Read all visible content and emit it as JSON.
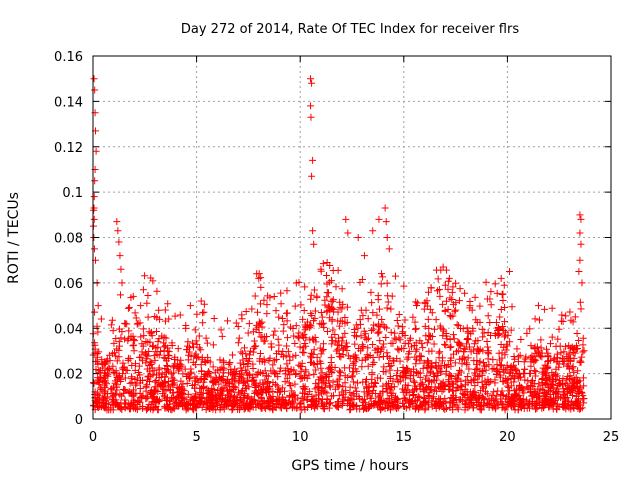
{
  "chart_data": {
    "type": "scatter",
    "title": "Day 272 of 2014, Rate Of TEC Index for receiver flrs",
    "xlabel": "GPS time / hours",
    "ylabel": "ROTI / TECUs",
    "xlim": [
      0,
      25
    ],
    "ylim": [
      0,
      0.16
    ],
    "x_ticks": [
      "0",
      "5",
      "10",
      "15",
      "20",
      "25"
    ],
    "y_ticks": [
      "0",
      "0.02",
      "0.04",
      "0.06",
      "0.08",
      "0.1",
      "0.12",
      "0.14",
      "0.16"
    ],
    "x_tick_values": [
      0,
      5,
      10,
      15,
      20,
      25
    ],
    "y_tick_values": [
      0,
      0.02,
      0.04,
      0.06,
      0.08,
      0.1,
      0.12,
      0.14,
      0.16
    ],
    "grid": true,
    "marker": "+",
    "series_color": "#ff0000",
    "density_profile": {
      "hours": [
        0,
        0.5,
        1,
        1.5,
        2,
        2.5,
        3,
        3.5,
        4,
        4.5,
        5,
        5.5,
        6,
        6.5,
        7,
        7.5,
        8,
        8.5,
        9,
        9.5,
        10,
        10.5,
        11,
        11.5,
        12,
        12.5,
        13,
        13.5,
        14,
        14.5,
        15,
        15.5,
        16,
        16.5,
        17,
        17.5,
        18,
        18.5,
        19,
        19.5,
        20,
        20.5,
        21,
        21.5,
        22,
        22.5,
        23,
        23.5
      ],
      "typical_max": [
        0.035,
        0.025,
        0.032,
        0.045,
        0.035,
        0.045,
        0.04,
        0.035,
        0.025,
        0.03,
        0.035,
        0.03,
        0.025,
        0.025,
        0.025,
        0.03,
        0.045,
        0.035,
        0.035,
        0.04,
        0.045,
        0.05,
        0.05,
        0.05,
        0.048,
        0.045,
        0.045,
        0.04,
        0.045,
        0.045,
        0.04,
        0.035,
        0.035,
        0.045,
        0.05,
        0.045,
        0.04,
        0.04,
        0.045,
        0.04,
        0.04,
        0.02,
        0.03,
        0.035,
        0.03,
        0.035,
        0.035,
        0.035
      ],
      "floor": 0.005
    },
    "notable_points": [
      {
        "x": 0.05,
        "y": 0.15
      },
      {
        "x": 0.08,
        "y": 0.145
      },
      {
        "x": 0.1,
        "y": 0.135
      },
      {
        "x": 0.12,
        "y": 0.127
      },
      {
        "x": 0.15,
        "y": 0.118
      },
      {
        "x": 0.1,
        "y": 0.11
      },
      {
        "x": 0.08,
        "y": 0.105
      },
      {
        "x": 0.06,
        "y": 0.098
      },
      {
        "x": 0.05,
        "y": 0.093
      },
      {
        "x": 0.03,
        "y": 0.092
      },
      {
        "x": 0.06,
        "y": 0.088
      },
      {
        "x": 0.02,
        "y": 0.085
      },
      {
        "x": 0.04,
        "y": 0.08
      },
      {
        "x": 0.07,
        "y": 0.075
      },
      {
        "x": 0.12,
        "y": 0.07
      },
      {
        "x": 0.2,
        "y": 0.06
      },
      {
        "x": 0.25,
        "y": 0.05
      },
      {
        "x": 1.15,
        "y": 0.087
      },
      {
        "x": 1.2,
        "y": 0.083
      },
      {
        "x": 1.25,
        "y": 0.078
      },
      {
        "x": 1.3,
        "y": 0.072
      },
      {
        "x": 1.35,
        "y": 0.066
      },
      {
        "x": 1.4,
        "y": 0.06
      },
      {
        "x": 2.3,
        "y": 0.05
      },
      {
        "x": 2.6,
        "y": 0.051
      },
      {
        "x": 4.7,
        "y": 0.05
      },
      {
        "x": 7.9,
        "y": 0.064
      },
      {
        "x": 8.0,
        "y": 0.062
      },
      {
        "x": 8.1,
        "y": 0.058
      },
      {
        "x": 10.5,
        "y": 0.15
      },
      {
        "x": 10.55,
        "y": 0.148
      },
      {
        "x": 10.5,
        "y": 0.138
      },
      {
        "x": 10.52,
        "y": 0.133
      },
      {
        "x": 10.6,
        "y": 0.114
      },
      {
        "x": 10.55,
        "y": 0.107
      },
      {
        "x": 10.6,
        "y": 0.083
      },
      {
        "x": 10.65,
        "y": 0.077
      },
      {
        "x": 11.0,
        "y": 0.066
      },
      {
        "x": 11.3,
        "y": 0.069
      },
      {
        "x": 12.2,
        "y": 0.088
      },
      {
        "x": 12.3,
        "y": 0.082
      },
      {
        "x": 12.8,
        "y": 0.08
      },
      {
        "x": 13.1,
        "y": 0.072
      },
      {
        "x": 13.5,
        "y": 0.083
      },
      {
        "x": 13.8,
        "y": 0.088
      },
      {
        "x": 14.1,
        "y": 0.093
      },
      {
        "x": 14.15,
        "y": 0.087
      },
      {
        "x": 14.2,
        "y": 0.08
      },
      {
        "x": 14.3,
        "y": 0.075
      },
      {
        "x": 14.6,
        "y": 0.063
      },
      {
        "x": 16.9,
        "y": 0.067
      },
      {
        "x": 17.2,
        "y": 0.062
      },
      {
        "x": 18.3,
        "y": 0.048
      },
      {
        "x": 19.7,
        "y": 0.062
      },
      {
        "x": 20.1,
        "y": 0.065
      },
      {
        "x": 21.5,
        "y": 0.05
      },
      {
        "x": 23.5,
        "y": 0.09
      },
      {
        "x": 23.55,
        "y": 0.088
      },
      {
        "x": 23.5,
        "y": 0.082
      },
      {
        "x": 23.55,
        "y": 0.077
      },
      {
        "x": 23.5,
        "y": 0.07
      },
      {
        "x": 23.45,
        "y": 0.065
      },
      {
        "x": 23.6,
        "y": 0.06
      }
    ]
  }
}
